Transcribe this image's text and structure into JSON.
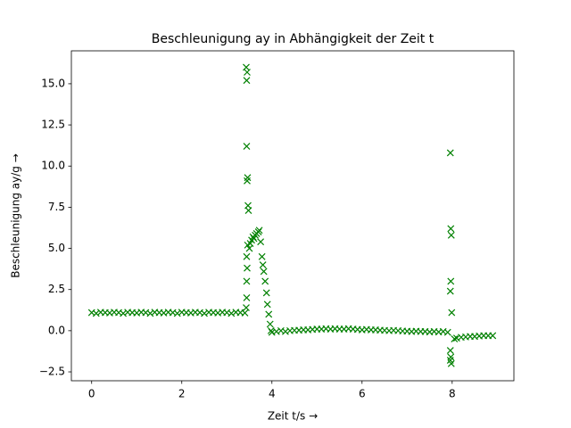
{
  "chart_data": {
    "type": "scatter",
    "title": "Beschleunigung ay in Abhängigkeit der Zeit t",
    "xlabel": "Zeit t/s →",
    "ylabel": "Beschleunigung ay/g →",
    "marker": "x",
    "series": [
      {
        "color": "#008000",
        "x": [
          0.0,
          0.1,
          0.2,
          0.3,
          0.4,
          0.5,
          0.6,
          0.7,
          0.8,
          0.9,
          1.0,
          1.1,
          1.2,
          1.3,
          1.4,
          1.5,
          1.6,
          1.7,
          1.8,
          1.9,
          2.0,
          2.1,
          2.2,
          2.3,
          2.4,
          2.5,
          2.6,
          2.7,
          2.8,
          2.9,
          3.0,
          3.1,
          3.2,
          3.3,
          3.4,
          3.43,
          3.45,
          3.44,
          3.44,
          3.46,
          3.45,
          3.47,
          3.48,
          3.46,
          3.44,
          3.45,
          3.44,
          3.44,
          3.43,
          3.5,
          3.52,
          3.55,
          3.58,
          3.6,
          3.63,
          3.66,
          3.7,
          3.72,
          3.75,
          3.78,
          3.8,
          3.82,
          3.85,
          3.88,
          3.9,
          3.93,
          3.96,
          3.98,
          4.0,
          4.1,
          4.2,
          4.3,
          4.4,
          4.5,
          4.6,
          4.7,
          4.8,
          4.9,
          5.0,
          5.1,
          5.2,
          5.3,
          5.4,
          5.5,
          5.6,
          5.7,
          5.8,
          5.9,
          6.0,
          6.1,
          6.2,
          6.3,
          6.4,
          6.5,
          6.6,
          6.7,
          6.8,
          6.9,
          7.0,
          7.1,
          7.2,
          7.3,
          7.4,
          7.5,
          7.6,
          7.7,
          7.8,
          7.9,
          7.96,
          7.97,
          7.98,
          7.97,
          7.96,
          7.99,
          7.96,
          7.97,
          7.98,
          7.96,
          8.05,
          8.1,
          8.2,
          8.3,
          8.4,
          8.5,
          8.6,
          8.7,
          8.8,
          8.9
        ],
        "values": [
          1.1,
          1.05,
          1.12,
          1.1,
          1.08,
          1.12,
          1.1,
          1.05,
          1.12,
          1.1,
          1.08,
          1.12,
          1.1,
          1.05,
          1.12,
          1.1,
          1.08,
          1.12,
          1.1,
          1.05,
          1.12,
          1.1,
          1.08,
          1.12,
          1.1,
          1.05,
          1.12,
          1.1,
          1.08,
          1.12,
          1.1,
          1.05,
          1.12,
          1.1,
          1.08,
          16.0,
          15.7,
          15.2,
          11.2,
          9.3,
          9.1,
          7.6,
          7.3,
          5.2,
          4.5,
          3.8,
          3.0,
          2.0,
          1.4,
          5.0,
          5.3,
          5.5,
          5.7,
          5.6,
          5.8,
          5.9,
          6.0,
          6.1,
          5.4,
          4.5,
          4.0,
          3.6,
          3.0,
          2.3,
          1.6,
          1.0,
          0.4,
          0.0,
          -0.1,
          -0.05,
          0.0,
          -0.05,
          0.0,
          0.02,
          0.03,
          0.05,
          0.05,
          0.08,
          0.1,
          0.1,
          0.12,
          0.1,
          0.12,
          0.1,
          0.1,
          0.12,
          0.1,
          0.08,
          0.05,
          0.08,
          0.05,
          0.05,
          0.03,
          0.02,
          0.0,
          0.02,
          0.0,
          -0.02,
          -0.03,
          -0.05,
          -0.03,
          -0.05,
          -0.05,
          -0.08,
          -0.05,
          -0.08,
          -0.05,
          -0.1,
          10.8,
          6.2,
          5.8,
          3.0,
          2.4,
          1.1,
          -1.2,
          -1.6,
          -2.0,
          -1.8,
          -0.5,
          -0.45,
          -0.4,
          -0.38,
          -0.35,
          -0.35,
          -0.32,
          -0.3,
          -0.3,
          -0.3
        ]
      }
    ],
    "xlim": [
      -0.45,
      9.37
    ],
    "ylim": [
      -3.04,
      17.0
    ],
    "xticks": [
      0,
      2,
      4,
      6,
      8
    ],
    "yticks": [
      {
        "value": -2.5,
        "label": "−2.5"
      },
      {
        "value": 0,
        "label": "0.0"
      },
      2.5,
      {
        "value": 5,
        "label": "5.0"
      },
      7.5,
      {
        "value": 10,
        "label": "10.0"
      },
      12.5,
      {
        "value": 15,
        "label": "15.0"
      }
    ]
  }
}
